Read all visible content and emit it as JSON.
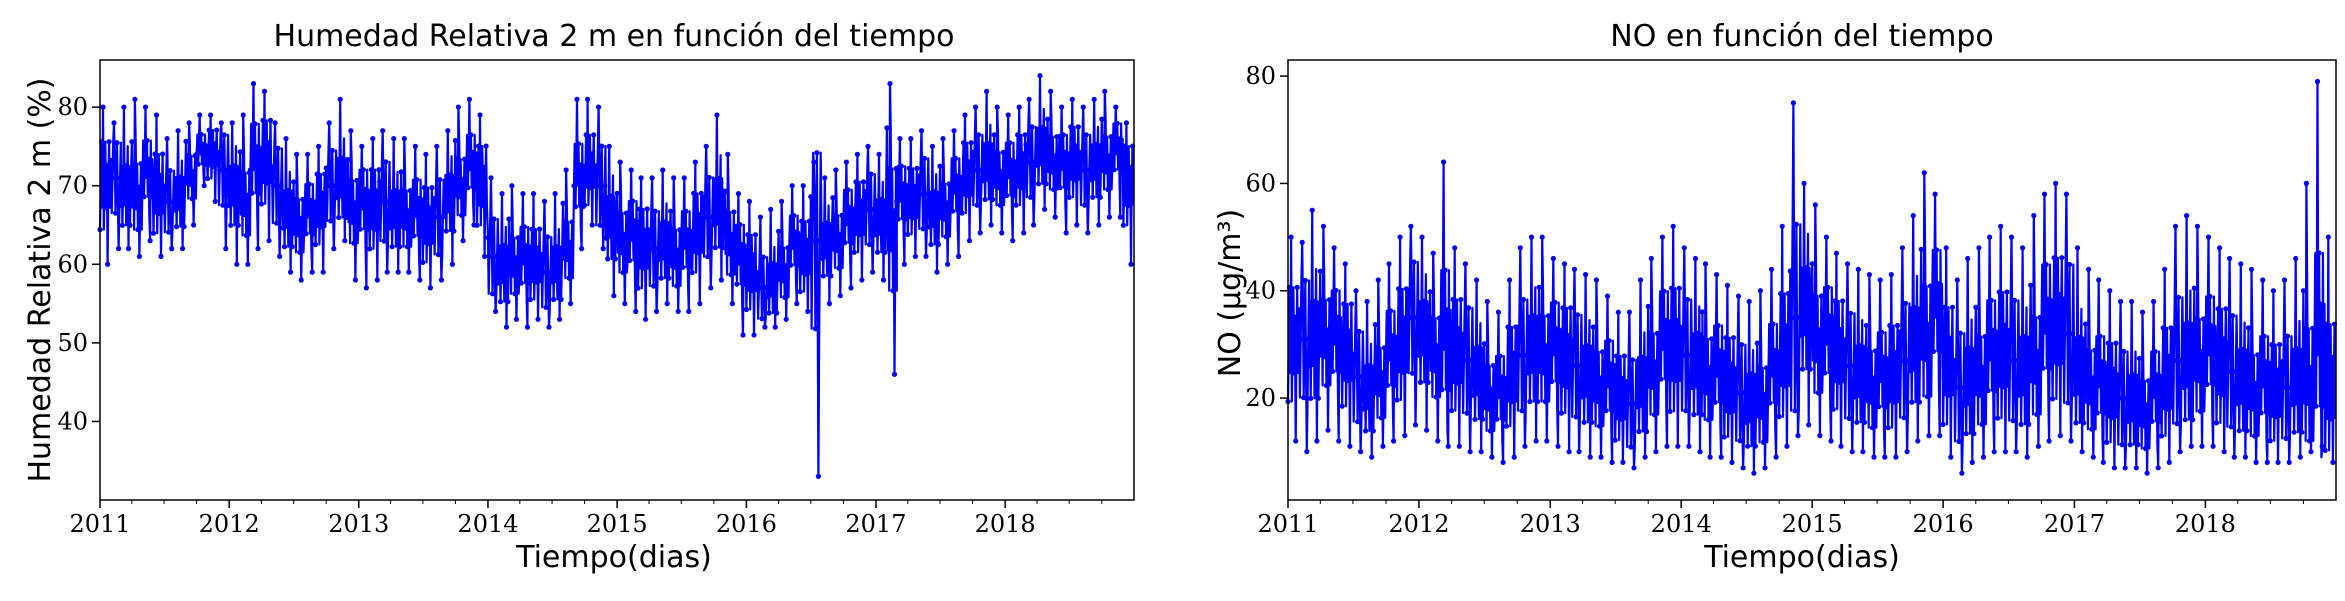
{
  "colors": {
    "series": "#0000ff",
    "axes": "#000000",
    "background": "#ffffff"
  },
  "chart_data": [
    {
      "id": "humidity",
      "type": "line",
      "title": "Humedad Relativa 2 m en función del tiempo",
      "xlabel": "Tiempo(dias)",
      "ylabel": "Humedad Relativa 2 m (%)",
      "xlim": [
        "2011-01-01",
        "2018-12-31"
      ],
      "ylim": [
        30,
        86
      ],
      "x_ticks": [
        "2011",
        "2012",
        "2013",
        "2014",
        "2015",
        "2016",
        "2017",
        "2018"
      ],
      "y_ticks": [
        40,
        50,
        60,
        70,
        80
      ],
      "grid": false,
      "legend": "none",
      "marker": "dot",
      "sampling": "approximate monthly mean, min and max read from the figure (daily series)",
      "series": [
        {
          "x": [
            "2011-01",
            "2011-02",
            "2011-03",
            "2011-04",
            "2011-05",
            "2011-06",
            "2011-07",
            "2011-08",
            "2011-09",
            "2011-10",
            "2011-11",
            "2011-12",
            "2012-01",
            "2012-02",
            "2012-03",
            "2012-04",
            "2012-05",
            "2012-06",
            "2012-07",
            "2012-08",
            "2012-09",
            "2012-10",
            "2012-11",
            "2012-12",
            "2013-01",
            "2013-02",
            "2013-03",
            "2013-04",
            "2013-05",
            "2013-06",
            "2013-07",
            "2013-08",
            "2013-09",
            "2013-10",
            "2013-11",
            "2013-12",
            "2014-01",
            "2014-02",
            "2014-03",
            "2014-04",
            "2014-05",
            "2014-06",
            "2014-07",
            "2014-08",
            "2014-09",
            "2014-10",
            "2014-11",
            "2014-12",
            "2015-01",
            "2015-02",
            "2015-03",
            "2015-04",
            "2015-05",
            "2015-06",
            "2015-07",
            "2015-08",
            "2015-09",
            "2015-10",
            "2015-11",
            "2015-12",
            "2016-01",
            "2016-02",
            "2016-03",
            "2016-04",
            "2016-05",
            "2016-06",
            "2016-07",
            "2016-08",
            "2016-09",
            "2016-10",
            "2016-11",
            "2016-12",
            "2017-01",
            "2017-02",
            "2017-03",
            "2017-04",
            "2017-05",
            "2017-06",
            "2017-07",
            "2017-08",
            "2017-09",
            "2017-10",
            "2017-11",
            "2017-12",
            "2018-01",
            "2018-02",
            "2018-03",
            "2018-04",
            "2018-05",
            "2018-06",
            "2018-07",
            "2018-08",
            "2018-09",
            "2018-10",
            "2018-11",
            "2018-12"
          ],
          "mean": [
            70,
            71,
            70,
            70,
            71,
            69,
            68,
            69,
            72,
            74,
            74,
            72,
            70,
            69,
            72,
            73,
            70,
            67,
            66,
            66,
            67,
            70,
            71,
            68,
            67,
            67,
            68,
            67,
            67,
            66,
            65,
            66,
            69,
            71,
            72,
            70,
            61,
            60,
            61,
            60,
            60,
            59,
            60,
            63,
            70,
            72,
            70,
            66,
            64,
            63,
            62,
            62,
            63,
            62,
            62,
            64,
            66,
            68,
            64,
            60,
            59,
            57,
            58,
            60,
            62,
            61,
            63,
            63,
            64,
            65,
            66,
            67,
            66,
            67,
            68,
            68,
            69,
            67,
            68,
            69,
            71,
            72,
            73,
            72,
            71,
            72,
            73,
            75,
            74,
            72,
            73,
            72,
            73,
            74,
            74,
            70
          ],
          "min": [
            60,
            62,
            62,
            61,
            63,
            61,
            62,
            62,
            65,
            70,
            68,
            62,
            60,
            60,
            62,
            63,
            61,
            59,
            58,
            59,
            59,
            62,
            63,
            58,
            57,
            58,
            59,
            59,
            59,
            58,
            57,
            58,
            60,
            63,
            65,
            61,
            54,
            52,
            53,
            52,
            53,
            52,
            53,
            55,
            62,
            65,
            62,
            56,
            55,
            54,
            53,
            54,
            55,
            54,
            54,
            55,
            57,
            58,
            55,
            51,
            51,
            52,
            52,
            53,
            55,
            54,
            33,
            55,
            56,
            57,
            58,
            59,
            58,
            46,
            60,
            61,
            61,
            59,
            60,
            61,
            63,
            64,
            65,
            64,
            63,
            64,
            65,
            67,
            66,
            64,
            65,
            64,
            65,
            66,
            66,
            60
          ],
          "max": [
            80,
            78,
            80,
            81,
            80,
            79,
            76,
            77,
            78,
            79,
            79,
            78,
            78,
            79,
            83,
            82,
            78,
            76,
            74,
            74,
            75,
            78,
            81,
            77,
            75,
            76,
            77,
            76,
            76,
            75,
            74,
            75,
            77,
            80,
            81,
            79,
            71,
            69,
            70,
            69,
            69,
            68,
            69,
            72,
            81,
            81,
            80,
            75,
            73,
            72,
            71,
            71,
            72,
            71,
            71,
            73,
            75,
            79,
            74,
            69,
            68,
            66,
            67,
            68,
            70,
            70,
            73,
            71,
            72,
            73,
            74,
            75,
            74,
            83,
            76,
            76,
            77,
            75,
            76,
            77,
            79,
            80,
            82,
            80,
            79,
            80,
            81,
            84,
            82,
            80,
            81,
            80,
            81,
            82,
            80,
            78
          ]
        }
      ]
    },
    {
      "id": "no",
      "type": "line",
      "title": "NO en función del tiempo",
      "xlabel": "Tiempo(dias)",
      "ylabel": "NO (μg/m³)",
      "xlim": [
        "2011-01-01",
        "2018-12-31"
      ],
      "ylim": [
        1,
        83
      ],
      "x_ticks": [
        "2011",
        "2012",
        "2013",
        "2014",
        "2015",
        "2016",
        "2017",
        "2018"
      ],
      "y_ticks": [
        20,
        40,
        60,
        80
      ],
      "grid": false,
      "legend": "none",
      "marker": "dot",
      "sampling": "approximate monthly mean, min and max read from the figure (daily series)",
      "series": [
        {
          "x": [
            "2011-01",
            "2011-02",
            "2011-03",
            "2011-04",
            "2011-05",
            "2011-06",
            "2011-07",
            "2011-08",
            "2011-09",
            "2011-10",
            "2011-11",
            "2011-12",
            "2012-01",
            "2012-02",
            "2012-03",
            "2012-04",
            "2012-05",
            "2012-06",
            "2012-07",
            "2012-08",
            "2012-09",
            "2012-10",
            "2012-11",
            "2012-12",
            "2013-01",
            "2013-02",
            "2013-03",
            "2013-04",
            "2013-05",
            "2013-06",
            "2013-07",
            "2013-08",
            "2013-09",
            "2013-10",
            "2013-11",
            "2013-12",
            "2014-01",
            "2014-02",
            "2014-03",
            "2014-04",
            "2014-05",
            "2014-06",
            "2014-07",
            "2014-08",
            "2014-09",
            "2014-10",
            "2014-11",
            "2014-12",
            "2015-01",
            "2015-02",
            "2015-03",
            "2015-04",
            "2015-05",
            "2015-06",
            "2015-07",
            "2015-08",
            "2015-09",
            "2015-10",
            "2015-11",
            "2015-12",
            "2016-01",
            "2016-02",
            "2016-03",
            "2016-04",
            "2016-05",
            "2016-06",
            "2016-07",
            "2016-08",
            "2016-09",
            "2016-10",
            "2016-11",
            "2016-12",
            "2017-01",
            "2017-02",
            "2017-03",
            "2017-04",
            "2017-05",
            "2017-06",
            "2017-07",
            "2017-08",
            "2017-09",
            "2017-10",
            "2017-11",
            "2017-12",
            "2018-01",
            "2018-02",
            "2018-03",
            "2018-04",
            "2018-05",
            "2018-06",
            "2018-07",
            "2018-08",
            "2018-09",
            "2018-10",
            "2018-11",
            "2018-12"
          ],
          "mean": [
            30,
            31,
            32,
            33,
            30,
            28,
            24,
            22,
            25,
            27,
            30,
            35,
            33,
            30,
            29,
            28,
            27,
            25,
            22,
            20,
            24,
            28,
            30,
            30,
            28,
            27,
            26,
            25,
            24,
            22,
            20,
            19,
            23,
            27,
            29,
            29,
            28,
            27,
            26,
            24,
            22,
            21,
            20,
            21,
            24,
            28,
            35,
            38,
            33,
            30,
            28,
            26,
            25,
            24,
            23,
            24,
            27,
            31,
            34,
            35,
            26,
            22,
            24,
            26,
            27,
            28,
            27,
            26,
            29,
            32,
            33,
            32,
            26,
            24,
            22,
            21,
            20,
            20,
            19,
            20,
            23,
            27,
            28,
            29,
            28,
            26,
            25,
            24,
            23,
            22,
            21,
            22,
            24,
            26,
            28,
            22
          ],
          "min": [
            12,
            10,
            12,
            14,
            12,
            11,
            10,
            9,
            11,
            12,
            13,
            15,
            14,
            12,
            11,
            11,
            10,
            10,
            9,
            8,
            9,
            11,
            12,
            12,
            11,
            10,
            10,
            9,
            9,
            8,
            8,
            7,
            9,
            10,
            11,
            11,
            11,
            10,
            9,
            9,
            8,
            7,
            6,
            7,
            9,
            11,
            13,
            15,
            13,
            12,
            11,
            10,
            10,
            9,
            9,
            9,
            10,
            12,
            13,
            13,
            9,
            6,
            8,
            9,
            10,
            10,
            10,
            9,
            11,
            12,
            13,
            12,
            10,
            9,
            8,
            7,
            7,
            7,
            6,
            7,
            8,
            10,
            11,
            11,
            11,
            10,
            9,
            9,
            8,
            8,
            8,
            8,
            9,
            10,
            11,
            8
          ],
          "max": [
            50,
            49,
            55,
            52,
            48,
            45,
            40,
            38,
            42,
            45,
            50,
            52,
            50,
            47,
            64,
            48,
            45,
            42,
            38,
            36,
            42,
            48,
            50,
            50,
            46,
            45,
            44,
            43,
            42,
            39,
            36,
            36,
            42,
            46,
            50,
            52,
            48,
            46,
            45,
            43,
            41,
            39,
            38,
            40,
            44,
            52,
            75,
            60,
            56,
            50,
            47,
            45,
            44,
            43,
            42,
            43,
            48,
            54,
            62,
            58,
            48,
            42,
            46,
            48,
            50,
            52,
            50,
            48,
            54,
            58,
            60,
            58,
            48,
            44,
            42,
            40,
            38,
            38,
            36,
            38,
            44,
            52,
            54,
            52,
            50,
            48,
            46,
            45,
            44,
            42,
            40,
            42,
            46,
            60,
            79,
            50
          ]
        }
      ]
    }
  ]
}
